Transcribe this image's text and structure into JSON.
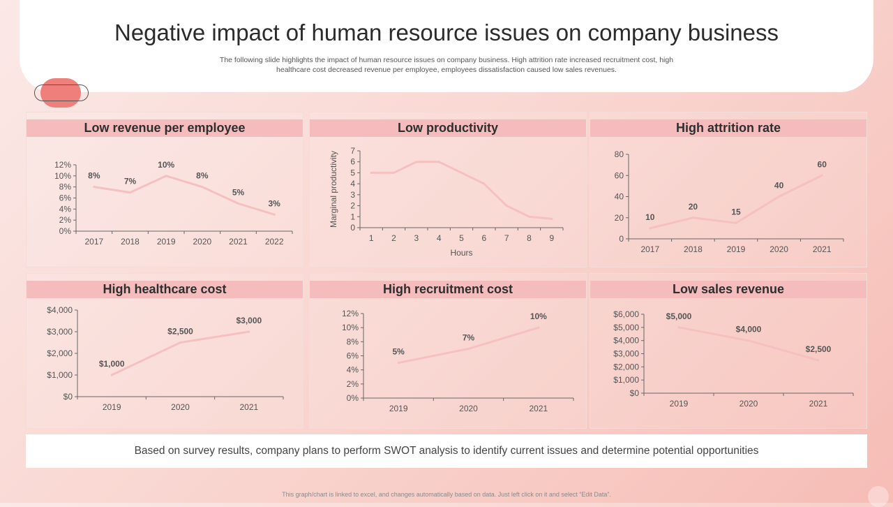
{
  "header": {
    "title": "Negative impact of human resource issues on company business",
    "subtitle": "The following slide highlights the impact of human resource issues on company business. High attrition rate increased recruitment cost, high healthcare cost decreased revenue per employee, employees dissatisfaction caused low sales revenues."
  },
  "summary": "Based on survey results, company plans to perform SWOT analysis to identify current issues and determine potential opportunities",
  "footnote": "This graph/chart is linked to excel, and changes automatically based on data. Just left click on it and select “Edit Data”.",
  "colors": {
    "line": "#f6c0c0",
    "panel_header": "#f4bcbc",
    "accent": "#ee7f7a"
  },
  "chart_data": [
    {
      "id": "revenue",
      "panel_title": "Low revenue per employee",
      "type": "line",
      "categories": [
        "2017",
        "2018",
        "2019",
        "2020",
        "2021",
        "2022"
      ],
      "values": [
        8,
        7,
        10,
        8,
        5,
        3
      ],
      "data_labels": [
        "8%",
        "7%",
        "10%",
        "8%",
        "5%",
        "3%"
      ],
      "ylim": [
        0,
        12
      ],
      "yticks": [
        "0%",
        "2%",
        "4%",
        "6%",
        "8%",
        "10%",
        "12%"
      ],
      "xlabel": "",
      "ylabel": ""
    },
    {
      "id": "productivity",
      "panel_title": "Low productivity",
      "type": "line",
      "categories": [
        "1",
        "2",
        "3",
        "4",
        "5",
        "6",
        "7",
        "8",
        "9"
      ],
      "values": [
        5,
        5,
        6,
        6,
        5,
        4,
        2,
        1,
        0.8
      ],
      "data_labels": [],
      "ylim": [
        0,
        7
      ],
      "yticks": [
        "0",
        "1",
        "2",
        "3",
        "4",
        "5",
        "6",
        "7"
      ],
      "xlabel": "Hours",
      "ylabel": "Marginal  productivity"
    },
    {
      "id": "attrition",
      "panel_title": "High attrition rate",
      "type": "line",
      "categories": [
        "2017",
        "2018",
        "2019",
        "2020",
        "2021"
      ],
      "values": [
        10,
        20,
        15,
        40,
        60
      ],
      "data_labels": [
        "10",
        "20",
        "15",
        "40",
        "60"
      ],
      "ylim": [
        0,
        80
      ],
      "yticks": [
        "0",
        "20",
        "40",
        "60",
        "80"
      ],
      "xlabel": "",
      "ylabel": ""
    },
    {
      "id": "healthcare",
      "panel_title": "High healthcare cost",
      "type": "line",
      "categories": [
        "2019",
        "2020",
        "2021"
      ],
      "values": [
        1000,
        2500,
        3000
      ],
      "data_labels": [
        "$1,000",
        "$2,500",
        "$3,000"
      ],
      "ylim": [
        0,
        4000
      ],
      "yticks": [
        "$0",
        "$1,000",
        "$2,000",
        "$3,000",
        "$4,000"
      ],
      "xlabel": "",
      "ylabel": ""
    },
    {
      "id": "recruitment",
      "panel_title": "High recruitment cost",
      "type": "line",
      "categories": [
        "2019",
        "2020",
        "2021"
      ],
      "values": [
        5,
        7,
        10
      ],
      "data_labels": [
        "5%",
        "7%",
        "10%"
      ],
      "ylim": [
        0,
        12
      ],
      "yticks": [
        "0%",
        "2%",
        "4%",
        "6%",
        "8%",
        "10%",
        "12%"
      ],
      "xlabel": "",
      "ylabel": ""
    },
    {
      "id": "sales",
      "panel_title": "Low sales revenue",
      "type": "line",
      "categories": [
        "2019",
        "2020",
        "2021"
      ],
      "values": [
        5000,
        4000,
        2500
      ],
      "data_labels": [
        "$5,000",
        "$4,000",
        "$2,500"
      ],
      "ylim": [
        0,
        6000
      ],
      "yticks": [
        "$0",
        "$1,000",
        "$2,000",
        "$3,000",
        "$4,000",
        "$5,000",
        "$6,000"
      ],
      "xlabel": "",
      "ylabel": ""
    }
  ]
}
